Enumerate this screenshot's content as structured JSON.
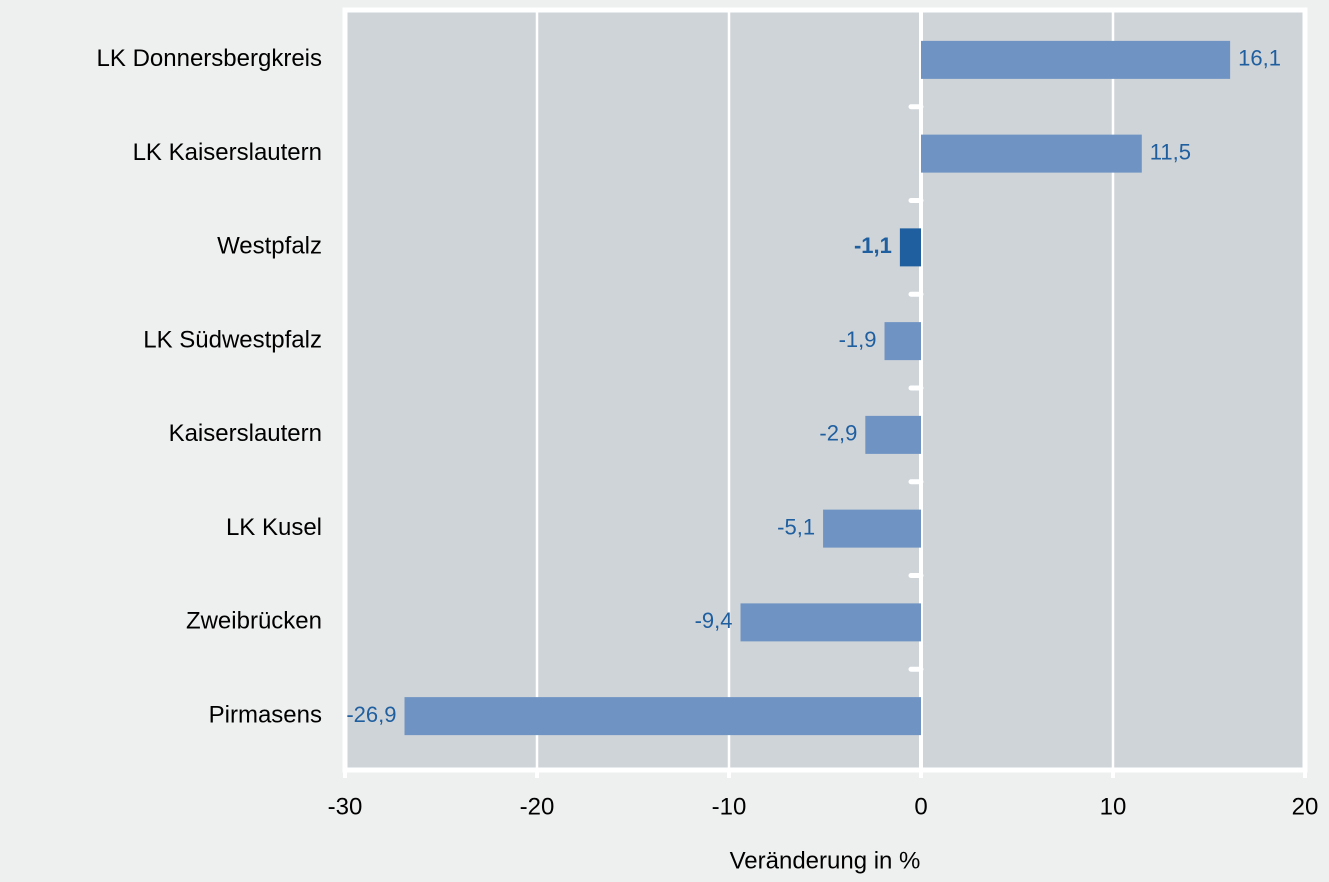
{
  "chart_data": {
    "type": "barh",
    "x_label": "Veränderung in %",
    "categories": [
      "LK Donnersbergkreis",
      "LK Kaiserslautern",
      "Westpfalz",
      "LK Südwestpfalz",
      "Kaiserslautern",
      "LK Kusel",
      "Zweibrücken",
      "Pirmasens"
    ],
    "values": [
      16.1,
      11.5,
      -1.1,
      -1.9,
      -2.9,
      -5.1,
      -9.4,
      -26.9
    ],
    "value_labels": [
      "16,1",
      "11,5",
      "-1,1",
      "-1,9",
      "-2,9",
      "-5,1",
      "-9,4",
      "-26,9"
    ],
    "color": "#6f93c3",
    "colors": [
      "#6f93c3",
      "#6f93c3",
      "#1f5fa0",
      "#6f93c3",
      "#6f93c3",
      "#6f93c3",
      "#6f93c3",
      "#6f93c3"
    ],
    "xlim": [
      -30,
      20
    ],
    "xticks": [
      -30,
      -20,
      -10,
      0,
      10,
      20
    ],
    "grid": true
  }
}
